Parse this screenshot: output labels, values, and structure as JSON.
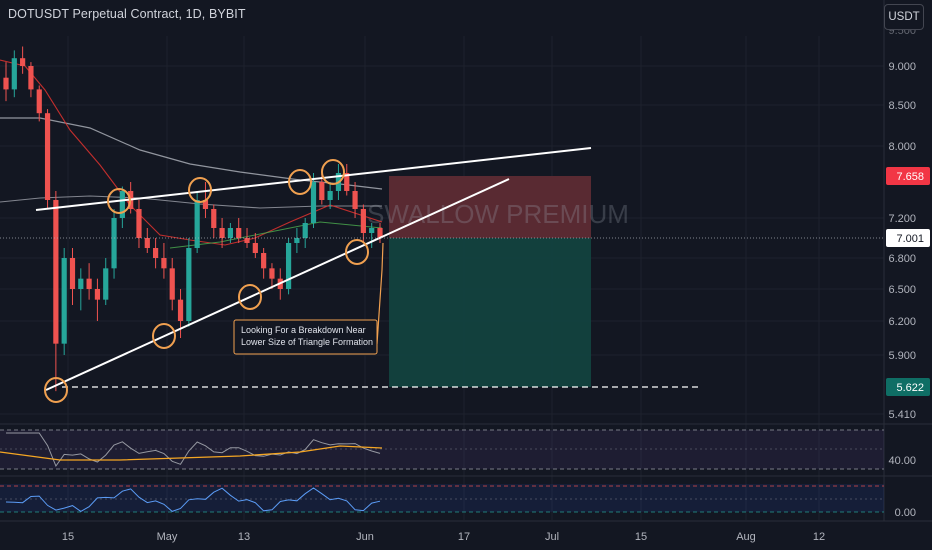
{
  "header": {
    "symbol_title": "DOTUSDT Perpetual Contract, 1D, BYBIT",
    "currency_label": "USDT"
  },
  "annotation": {
    "line1": "Looking For a Breakdown Near",
    "line2": "Lower Size of Triangle Formation"
  },
  "watermark": "SWALLOW PREMIUM",
  "price_labels": {
    "stop": "7.658",
    "current": "7.001",
    "target": "5.622"
  },
  "colors": {
    "background": "#131722",
    "up": "#26a69a",
    "down": "#ef5350",
    "stop_zone": "#5d2b34",
    "target_zone": "#12423f",
    "label_red": "#f23645",
    "label_teal": "#0f6e65",
    "circle": "#f0a050",
    "ema_fast": "#e0322f",
    "ema_slow": "#b2b5be",
    "rsi_line": "#9598a1",
    "rsi_signal": "#f5a623",
    "osc_line": "#5b9cf6"
  },
  "chart_data": {
    "type": "candlestick",
    "title": "DOTUSDT Perpetual Contract, 1D, BYBIT",
    "price_axis_ticks": [
      "9.000",
      "8.500",
      "8.000",
      "7.200",
      "6.800",
      "6.500",
      "6.200",
      "5.900",
      "5.410"
    ],
    "rsi_axis_ticks": [
      "40.00"
    ],
    "osc_axis_ticks": [
      "0.00"
    ],
    "time_axis_ticks": [
      "15",
      "May",
      "13",
      "Jun",
      "17",
      "Jul",
      "15",
      "Aug",
      "12"
    ],
    "ohlc_approx": [
      [
        8.85,
        9.05,
        8.55,
        8.7
      ],
      [
        8.7,
        9.2,
        8.6,
        9.1
      ],
      [
        9.1,
        9.25,
        8.9,
        9.0
      ],
      [
        9.0,
        9.05,
        8.6,
        8.7
      ],
      [
        8.7,
        8.75,
        8.3,
        8.4
      ],
      [
        8.4,
        8.45,
        7.3,
        7.4
      ],
      [
        7.4,
        7.5,
        5.6,
        6.0
      ],
      [
        6.0,
        6.9,
        5.9,
        6.8
      ],
      [
        6.8,
        6.9,
        6.35,
        6.5
      ],
      [
        6.5,
        6.7,
        6.3,
        6.6
      ],
      [
        6.6,
        6.75,
        6.4,
        6.5
      ],
      [
        6.5,
        6.6,
        6.2,
        6.4
      ],
      [
        6.4,
        6.8,
        6.35,
        6.7
      ],
      [
        6.7,
        7.3,
        6.6,
        7.2
      ],
      [
        7.2,
        7.55,
        7.1,
        7.5
      ],
      [
        7.5,
        7.6,
        7.25,
        7.3
      ],
      [
        7.3,
        7.4,
        6.9,
        7.0
      ],
      [
        7.0,
        7.1,
        6.85,
        6.9
      ],
      [
        6.9,
        7.0,
        6.7,
        6.8
      ],
      [
        6.8,
        6.95,
        6.6,
        6.7
      ],
      [
        6.7,
        6.8,
        6.3,
        6.4
      ],
      [
        6.4,
        6.5,
        6.05,
        6.2
      ],
      [
        6.2,
        7.0,
        6.15,
        6.9
      ],
      [
        6.9,
        7.5,
        6.85,
        7.4
      ],
      [
        7.4,
        7.6,
        7.2,
        7.3
      ],
      [
        7.3,
        7.35,
        7.0,
        7.1
      ],
      [
        7.1,
        7.2,
        6.9,
        7.0
      ],
      [
        7.0,
        7.15,
        6.95,
        7.1
      ],
      [
        7.1,
        7.2,
        6.95,
        7.0
      ],
      [
        7.0,
        7.1,
        6.9,
        6.95
      ],
      [
        6.95,
        7.05,
        6.8,
        6.85
      ],
      [
        6.85,
        6.9,
        6.6,
        6.7
      ],
      [
        6.7,
        6.75,
        6.5,
        6.6
      ],
      [
        6.6,
        6.7,
        6.4,
        6.5
      ],
      [
        6.5,
        7.0,
        6.45,
        6.95
      ],
      [
        6.95,
        7.1,
        6.85,
        7.0
      ],
      [
        7.0,
        7.2,
        6.9,
        7.15
      ],
      [
        7.15,
        7.7,
        7.1,
        7.6
      ],
      [
        7.6,
        7.75,
        7.35,
        7.4
      ],
      [
        7.4,
        7.6,
        7.3,
        7.5
      ],
      [
        7.5,
        7.8,
        7.4,
        7.7
      ],
      [
        7.7,
        7.8,
        7.45,
        7.5
      ],
      [
        7.5,
        7.6,
        7.2,
        7.3
      ],
      [
        7.3,
        7.35,
        6.95,
        7.05
      ],
      [
        7.05,
        7.15,
        6.9,
        7.1
      ],
      [
        7.1,
        7.15,
        6.95,
        7.0
      ]
    ]
  }
}
